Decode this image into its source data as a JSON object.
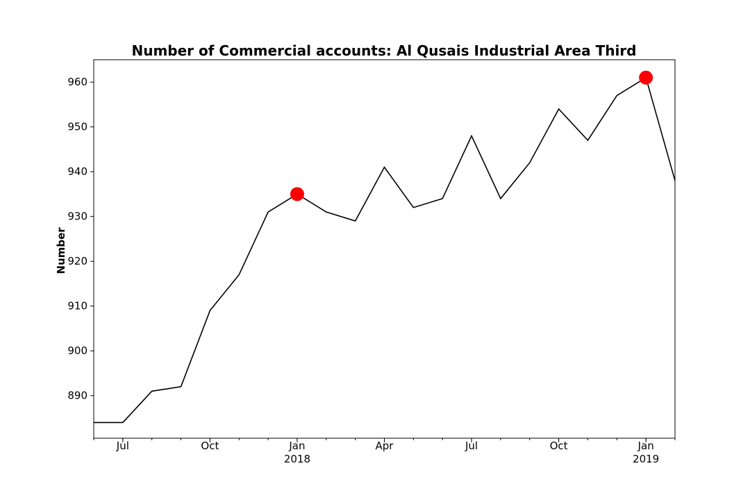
{
  "chart_data": {
    "type": "line",
    "title": "Number of Commercial accounts: Al Qusais Industrial Area Third",
    "xlabel": "",
    "ylabel": "Number",
    "x": [
      "2017-06",
      "2017-07",
      "2017-08",
      "2017-09",
      "2017-10",
      "2017-11",
      "2017-12",
      "2018-01",
      "2018-02",
      "2018-03",
      "2018-04",
      "2018-05",
      "2018-06",
      "2018-07",
      "2018-08",
      "2018-09",
      "2018-10",
      "2018-11",
      "2018-12",
      "2019-01",
      "2019-02"
    ],
    "series": [
      {
        "values": [
          884,
          884,
          891,
          892,
          909,
          917,
          931,
          935,
          931,
          929,
          941,
          932,
          934,
          948,
          934,
          942,
          954,
          947,
          957,
          961,
          938
        ]
      }
    ],
    "highlight_points": [
      {
        "x": "2018-01",
        "y": 935
      },
      {
        "x": "2019-01",
        "y": 961
      }
    ],
    "ylim": [
      880.5,
      965
    ],
    "yticks": [
      890,
      900,
      910,
      920,
      930,
      940,
      950,
      960
    ],
    "xticks": [
      {
        "x": "2017-07",
        "label": "Jul",
        "sublabel": ""
      },
      {
        "x": "2017-10",
        "label": "Oct",
        "sublabel": ""
      },
      {
        "x": "2018-01",
        "label": "Jan",
        "sublabel": "2018"
      },
      {
        "x": "2018-04",
        "label": "Apr",
        "sublabel": ""
      },
      {
        "x": "2018-07",
        "label": "Jul",
        "sublabel": ""
      },
      {
        "x": "2018-10",
        "label": "Oct",
        "sublabel": ""
      },
      {
        "x": "2019-01",
        "label": "Jan",
        "sublabel": "2019"
      }
    ],
    "line_color": "#000000",
    "highlight_color": "#ff0000",
    "grid": false,
    "legend": "none"
  }
}
